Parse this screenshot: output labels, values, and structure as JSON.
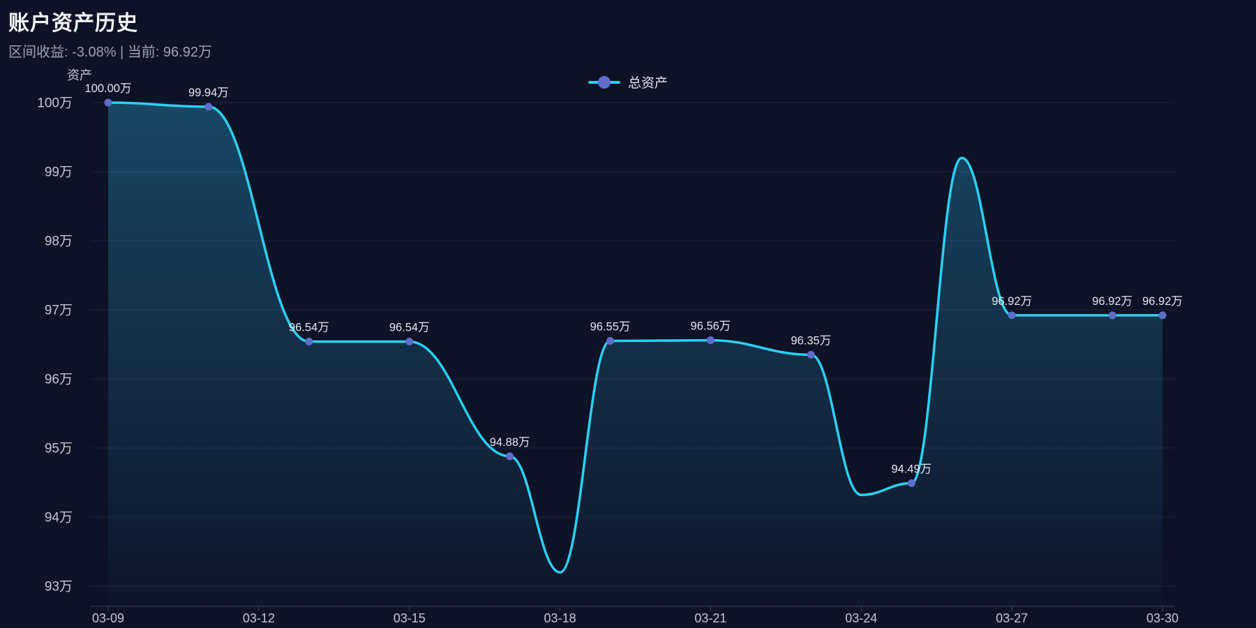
{
  "header": {
    "title": "账户资产历史",
    "subtitle": "区间收益: -3.08%  |  当前: 96.92万"
  },
  "legend": {
    "label": "总资产"
  },
  "colors": {
    "background": "#0e1226",
    "line": "#2ad1f2",
    "dot": "#5e6dc8",
    "grid": "#1e2440",
    "axis_line": "#3c435e",
    "axis_label": "#c2c7d4",
    "point_label": "#e3e7f0",
    "area_top": "rgba(42,170,215,0.35)",
    "area_bottom": "rgba(42,170,215,0.02)"
  },
  "chart_data": {
    "type": "line",
    "title": "账户资产历史",
    "series_name": "总资产",
    "y_axis_name": "资产",
    "smooth": true,
    "area": true,
    "grid": "horizontal-only",
    "legend_position": "top-center",
    "ylim": [
      93,
      100
    ],
    "x": [
      "03-09",
      "03-11",
      "03-13",
      "03-15",
      "03-17",
      "03-19",
      "03-21",
      "03-23",
      "03-25",
      "03-27",
      "03-29",
      "03-30"
    ],
    "values_wan": [
      100.0,
      99.94,
      96.54,
      96.54,
      94.88,
      96.55,
      96.56,
      96.35,
      94.49,
      96.92,
      96.92,
      96.92
    ],
    "point_labels": [
      "100.00万",
      "99.94万",
      "96.54万",
      "96.54万",
      "94.88万",
      "96.55万",
      "96.56万",
      "96.35万",
      "94.49万",
      "96.92万",
      "96.92万",
      "96.92万"
    ],
    "x_axis_ticks": [
      "03-09",
      "03-12",
      "03-15",
      "03-18",
      "03-21",
      "03-24",
      "03-27",
      "03-30"
    ],
    "y_axis_ticks": [
      "100万",
      "99万",
      "98万",
      "97万",
      "96万",
      "95万",
      "94万",
      "93万"
    ],
    "curve_overshoot_extremes": [
      {
        "x": "03-18",
        "approx_value_wan": 93.2
      },
      {
        "x": "03-24",
        "approx_value_wan": 94.32
      },
      {
        "x": "03-26",
        "approx_value_wan": 99.2
      }
    ]
  }
}
